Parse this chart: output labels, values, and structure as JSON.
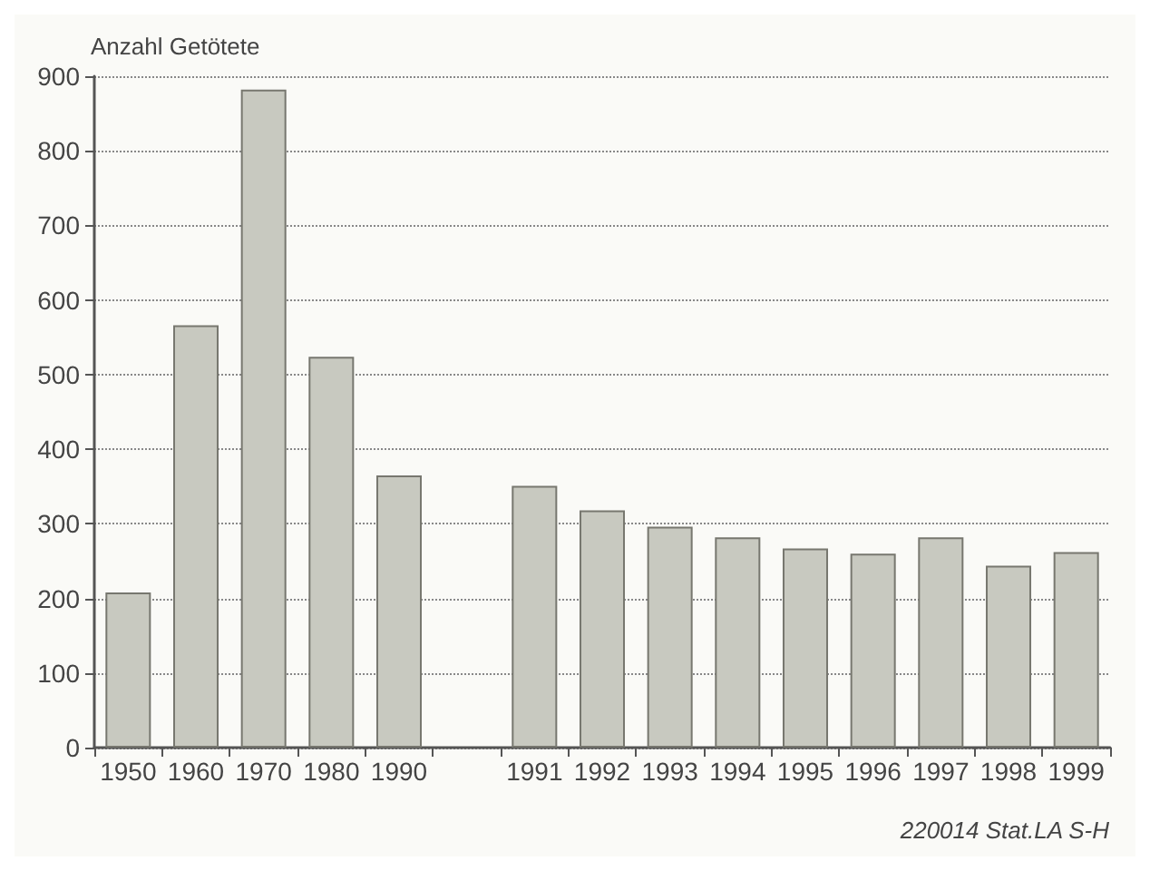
{
  "chart_data": {
    "type": "bar",
    "ylabel": "Anzahl Getötete",
    "categories": [
      "1950",
      "1960",
      "1970",
      "1980",
      "1990",
      null,
      "1991",
      "1992",
      "1993",
      "1994",
      "1995",
      "1996",
      "1997",
      "1998",
      "1999"
    ],
    "values": [
      208,
      566,
      882,
      524,
      365,
      null,
      351,
      318,
      296,
      282,
      267,
      260,
      282,
      244,
      262
    ],
    "color": "#c8c9c0",
    "ylim": [
      0,
      900
    ],
    "yticks": [
      0,
      100,
      200,
      300,
      400,
      500,
      600,
      700,
      800,
      900
    ],
    "grid": "y",
    "annotations": [
      "220014 Stat.LA S-H"
    ]
  }
}
